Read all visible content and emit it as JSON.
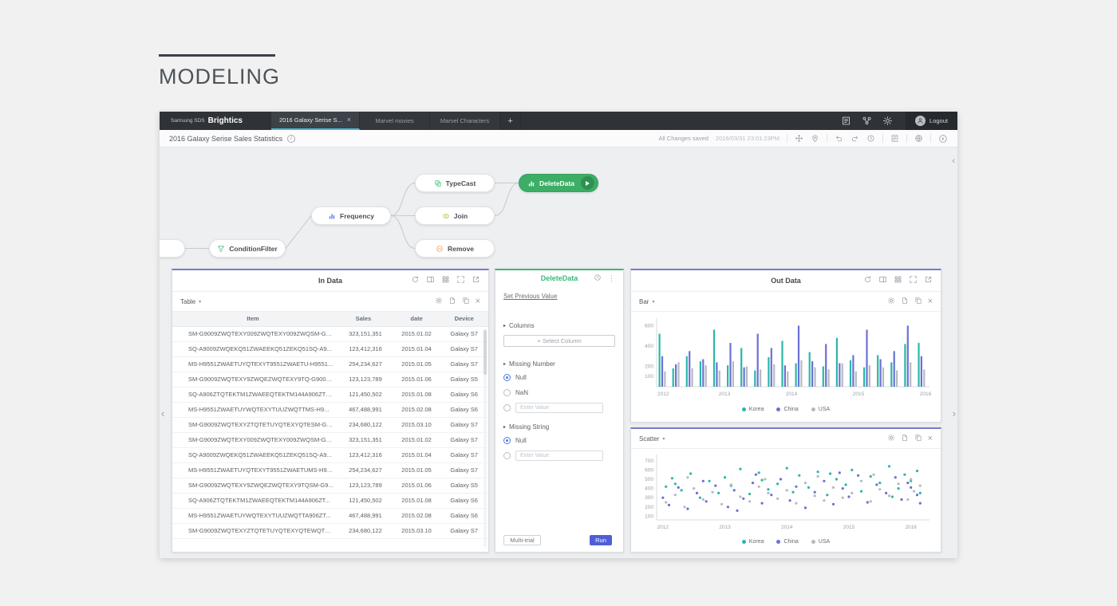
{
  "page": {
    "title": "MODELING"
  },
  "icons": {
    "close": "×",
    "plus": "+",
    "caret_down": "▾",
    "caret_right": "▸",
    "kebab": "⋮",
    "chevron_left": "‹",
    "chevron_right": "›",
    "info": "i"
  },
  "header": {
    "brand_small": "Samsung SDS",
    "brand": "Brightics",
    "tabs": [
      {
        "label": "2016 Galaxy Serise S...",
        "active": true
      },
      {
        "label": "Marvel movies",
        "active": false
      },
      {
        "label": "Marvel Characters",
        "active": false
      }
    ],
    "logout_label": "Logout"
  },
  "toolbar": {
    "title": "2016 Galaxy Serise Sales Statistics",
    "status": "All Changes saved",
    "timestamp": "2016/03/31 23:01:23PM"
  },
  "canvas": {
    "nodes": [
      {
        "label": "ConditionFilter"
      },
      {
        "label": "Frequency"
      },
      {
        "label": "TypeCast"
      },
      {
        "label": "Join"
      },
      {
        "label": "Remove"
      },
      {
        "label": "DeleteData"
      }
    ]
  },
  "in_data": {
    "title": "In Data",
    "view_selector": "Table",
    "table": {
      "columns": [
        "Item",
        "Sales",
        "date",
        "Device"
      ],
      "rows": [
        [
          "SM-G9009ZWQTEXY009ZWQTEXY009ZWQSM-G9...",
          "323,151,351",
          "2015.01.02",
          "Galaxy S7"
        ],
        [
          "SQ-A9009ZWQEKQ51ZWAEEKQ51ZEKQ51SQ-A9...",
          "123,412,316",
          "2015.01.04",
          "Galaxy S7"
        ],
        [
          "MS-H9551ZWAETUYQTEXYT9551ZWAETU-H9551...",
          "254,234,627",
          "2015.01.05",
          "Galaxy S7"
        ],
        [
          "SM-G9009ZWQTEXY9ZWQEZWQTEXY9TQ-G9009...",
          "123,123,789",
          "2015.01.06",
          "Galaxy S5"
        ],
        [
          "SQ-A906ZTQTEKTM1ZWAEEQTEKTM144A906ZTQ...",
          "121,450,502",
          "2015.01.08",
          "Galaxy S6"
        ],
        [
          "MS-H9551ZWAETUYWQTEXYTUUZWQTTMS-H9...",
          "467,488,991",
          "2015.02.08",
          "Galaxy S6"
        ],
        [
          "SM-G9009ZWQTEXYZTQTETUYQTEXYQTESM-G9...",
          "234,680,122",
          "2015.03.10",
          "Galaxy S7"
        ],
        [
          "SM-G9009ZWQTEXY009ZWQTEXY009ZWQSM-G9...",
          "323,151,351",
          "2015.01.02",
          "Galaxy S7"
        ],
        [
          "SQ-A9009ZWQEKQ51ZWAEEKQ51ZEKQ51SQ-A9...",
          "123,412,316",
          "2015.01.04",
          "Galaxy S7"
        ],
        [
          "MS-H9551ZWAETUYQTEXYT9551ZWAETUMS-H95...",
          "254,234,627",
          "2015.01.05",
          "Galaxy S7"
        ],
        [
          "SM-G9009ZWQTEXY9ZWQEZWQTEXY9TQSM-G9...",
          "123,123,789",
          "2015.01.06",
          "Galaxy S5"
        ],
        [
          "SQ-A906ZTQTEKTM1ZWAEEQTEKTM144A906ZT...",
          "121,450,502",
          "2015.01.08",
          "Galaxy S6"
        ],
        [
          "MS-H9551ZWAETUYWQTEXYTUUZWQTTA906ZT...",
          "467,488,991",
          "2015.02.08",
          "Galaxy S6"
        ],
        [
          "SM-G9009ZWQTEXYZTQTETUYQTEXYQTEWQTE...",
          "234,680,122",
          "2015.03.10",
          "Galaxy S7"
        ]
      ]
    }
  },
  "delete_data": {
    "title": "DeleteData",
    "link": "Set Previous Value",
    "sections": {
      "columns": "Columns",
      "missing_number": "Missing Number",
      "missing_string": "Missing String"
    },
    "select_column": "+ Select Column",
    "options_number": [
      "Null",
      "NaN"
    ],
    "options_string": [
      "Null"
    ],
    "enter_value_placeholder": "Enter Value",
    "multi_trial": "Multi-trial",
    "run": "Run"
  },
  "out_data": {
    "title": "Out Data",
    "view_selector": "Bar"
  },
  "scatter_panel": {
    "view_selector": "Scatter"
  },
  "colors": {
    "accent_purple": "#767cc8",
    "accent_green": "#3cb878",
    "run_button": "#4e5fd6",
    "radio_selected": "#4a7de1",
    "series_korea": "#2ab7a9",
    "series_china": "#6a71d6",
    "series_usa": "#b6bac0"
  },
  "chart_data": [
    {
      "id": "out-bar",
      "type": "bar",
      "title": "Out Data",
      "xlabel": "",
      "ylabel": "",
      "x_ticks": [
        "2012",
        "2013",
        "2014",
        "2015",
        "2016"
      ],
      "y_ticks": [
        600,
        400,
        200,
        100
      ],
      "ylim": [
        0,
        650
      ],
      "legend_position": "bottom",
      "series": [
        {
          "name": "Korea",
          "color": "#2ab7a9",
          "values": [
            520,
            180,
            300,
            250,
            560,
            210,
            380,
            160,
            290,
            450,
            230,
            340,
            200,
            480,
            260,
            190,
            310,
            240,
            420,
            430
          ]
        },
        {
          "name": "China",
          "color": "#6a71d6",
          "values": [
            300,
            220,
            350,
            270,
            240,
            430,
            190,
            520,
            380,
            210,
            600,
            250,
            420,
            230,
            310,
            560,
            270,
            350,
            600,
            300
          ]
        },
        {
          "name": "USA",
          "color": "#b6bac0",
          "values": [
            150,
            240,
            180,
            210,
            160,
            250,
            200,
            170,
            220,
            150,
            260,
            190,
            170,
            230,
            150,
            210,
            190,
            160,
            240,
            170
          ]
        }
      ]
    },
    {
      "id": "out-scatter",
      "type": "scatter",
      "title": "",
      "xlabel": "",
      "ylabel": "",
      "x_ticks": [
        "2012",
        "2013",
        "2014",
        "2015",
        "2016"
      ],
      "y_ticks": [
        700,
        600,
        500,
        400,
        300,
        200,
        100
      ],
      "xlim": [
        2011.9,
        2016.3
      ],
      "ylim": [
        60,
        750
      ],
      "legend_position": "bottom",
      "series": [
        {
          "name": "Korea",
          "color": "#2ab7a9",
          "points": [
            [
              2012.05,
              420
            ],
            [
              2012.15,
              510
            ],
            [
              2012.3,
              380
            ],
            [
              2012.45,
              560
            ],
            [
              2012.6,
              300
            ],
            [
              2012.75,
              480
            ],
            [
              2012.9,
              350
            ],
            [
              2013,
              520
            ],
            [
              2013.1,
              430
            ],
            [
              2013.25,
              610
            ],
            [
              2013.4,
              340
            ],
            [
              2013.55,
              570
            ],
            [
              2013.7,
              390
            ],
            [
              2013.85,
              450
            ],
            [
              2014,
              620
            ],
            [
              2014.1,
              360
            ],
            [
              2014.2,
              540
            ],
            [
              2014.35,
              410
            ],
            [
              2014.5,
              580
            ],
            [
              2014.65,
              330
            ],
            [
              2014.8,
              500
            ],
            [
              2014.95,
              440
            ],
            [
              2015.05,
              600
            ],
            [
              2015.2,
              370
            ],
            [
              2015.35,
              530
            ],
            [
              2015.5,
              460
            ],
            [
              2015.65,
              640
            ],
            [
              2015.8,
              400
            ],
            [
              2015.9,
              550
            ],
            [
              2016,
              480
            ],
            [
              2016.1,
              590
            ],
            [
              2016.15,
              350
            ],
            [
              2012.2,
              450
            ],
            [
              2013.6,
              490
            ],
            [
              2014.7,
              560
            ],
            [
              2015.7,
              310
            ]
          ]
        },
        {
          "name": "China",
          "color": "#6a71d6",
          "points": [
            [
              2012,
              300
            ],
            [
              2012.1,
              220
            ],
            [
              2012.25,
              410
            ],
            [
              2012.4,
              180
            ],
            [
              2012.55,
              350
            ],
            [
              2012.7,
              260
            ],
            [
              2012.85,
              430
            ],
            [
              2013.05,
              200
            ],
            [
              2013.15,
              380
            ],
            [
              2013.3,
              290
            ],
            [
              2013.45,
              460
            ],
            [
              2013.6,
              240
            ],
            [
              2013.75,
              330
            ],
            [
              2013.9,
              500
            ],
            [
              2014.05,
              270
            ],
            [
              2014.15,
              420
            ],
            [
              2014.3,
              190
            ],
            [
              2014.45,
              360
            ],
            [
              2014.6,
              480
            ],
            [
              2014.75,
              230
            ],
            [
              2014.9,
              400
            ],
            [
              2015,
              310
            ],
            [
              2015.15,
              540
            ],
            [
              2015.3,
              250
            ],
            [
              2015.45,
              440
            ],
            [
              2015.6,
              350
            ],
            [
              2015.75,
              520
            ],
            [
              2015.85,
              280
            ],
            [
              2016,
              410
            ],
            [
              2016.1,
              330
            ],
            [
              2012.65,
              480
            ],
            [
              2013.5,
              550
            ],
            [
              2014.85,
              570
            ],
            [
              2015.95,
              460
            ],
            [
              2016.15,
              240
            ],
            [
              2013.2,
              160
            ]
          ]
        },
        {
          "name": "USA",
          "color": "#b6bac0",
          "points": [
            [
              2012.05,
              250
            ],
            [
              2012.2,
              330
            ],
            [
              2012.35,
              200
            ],
            [
              2012.5,
              400
            ],
            [
              2012.65,
              280
            ],
            [
              2012.8,
              360
            ],
            [
              2012.95,
              230
            ],
            [
              2013.1,
              440
            ],
            [
              2013.25,
              310
            ],
            [
              2013.4,
              260
            ],
            [
              2013.55,
              420
            ],
            [
              2013.7,
              350
            ],
            [
              2013.85,
              290
            ],
            [
              2014,
              380
            ],
            [
              2014.15,
              240
            ],
            [
              2014.3,
              460
            ],
            [
              2014.45,
              320
            ],
            [
              2014.6,
              270
            ],
            [
              2014.75,
              410
            ],
            [
              2014.9,
              300
            ],
            [
              2015.05,
              350
            ],
            [
              2015.2,
              480
            ],
            [
              2015.35,
              260
            ],
            [
              2015.5,
              390
            ],
            [
              2015.65,
              320
            ],
            [
              2015.8,
              450
            ],
            [
              2015.95,
              280
            ],
            [
              2016.05,
              370
            ],
            [
              2016.15,
              430
            ],
            [
              2012.4,
              520
            ],
            [
              2013.65,
              500
            ],
            [
              2014.5,
              530
            ],
            [
              2015.4,
              550
            ],
            [
              2016,
              500
            ]
          ]
        }
      ]
    }
  ]
}
